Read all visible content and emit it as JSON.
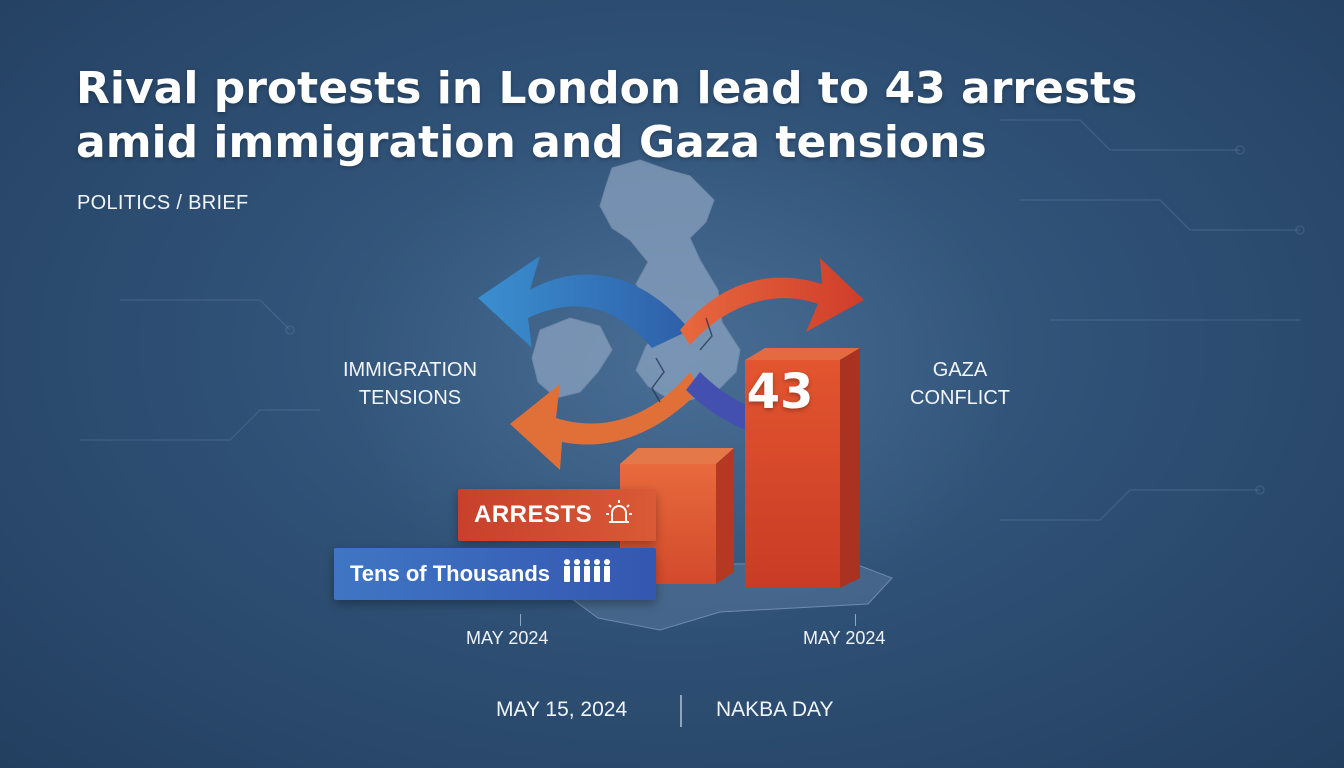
{
  "headline": {
    "line1": "Rival protests in London lead to 43 arrests",
    "line2": "amid immigration and Gaza tensions"
  },
  "kicker": "POLITICS / BRIEF",
  "labels": {
    "left_line1": "IMMIGRATION",
    "left_line2": "TENSIONS",
    "right_line1": "GAZA",
    "right_line2": "CONFLICT"
  },
  "chart_data": {
    "type": "bar",
    "categories": [
      "MAY 2024",
      "MAY 2024"
    ],
    "values": [
      null,
      43
    ],
    "data_labels": [
      "",
      "43"
    ],
    "callouts": [
      "ARRESTS",
      "Tens of Thousands"
    ]
  },
  "pills": {
    "arrests": "ARRESTS",
    "arrests_icon": "siren-icon",
    "people": "Tens of Thousands",
    "people_icon": "crowd-icon"
  },
  "axis": {
    "left_date": "MAY 2024",
    "right_date": "MAY 2024"
  },
  "footer": {
    "date": "MAY 15, 2024",
    "event": "NAKBA DAY"
  },
  "colors": {
    "background": "#2f5176",
    "orange": "#e0603a",
    "red": "#cf452e",
    "blue": "#3b82c4",
    "indigo": "#3f4fae"
  }
}
